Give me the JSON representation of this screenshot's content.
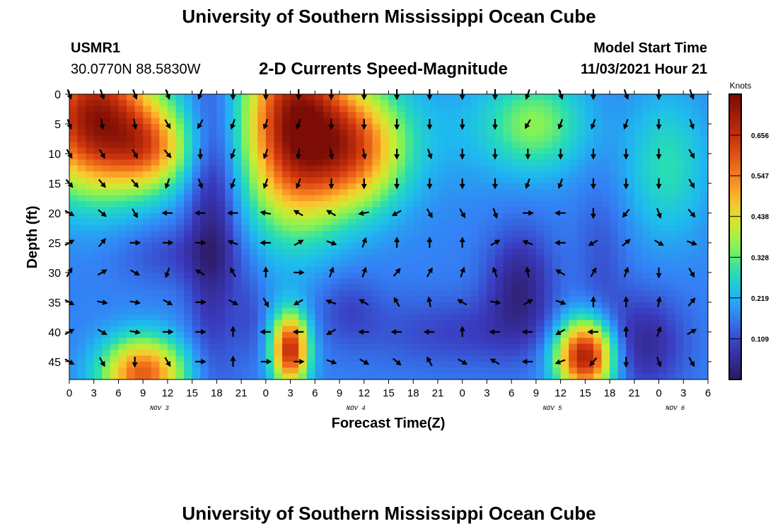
{
  "page": {
    "title": "University of Southern Mississippi Ocean Cube",
    "station_id": "USMR1",
    "coords": "30.0770N  88.5830W",
    "subtitle": "2-D Currents Speed-Magnitude",
    "model_start_label": "Model Start Time",
    "model_start_value": "11/03/2021 Hour 21",
    "footer_title": "University of Southern Mississippi Ocean Cube"
  },
  "chart_data": {
    "type": "heatmap",
    "title": "2-D Currents Speed-Magnitude",
    "xlabel": "Forecast Time(Z)",
    "ylabel": "Depth (ft)",
    "colorbar_label": "Knots",
    "colorbar_ticks": [
      0.109,
      0.219,
      0.328,
      0.438,
      0.547,
      0.656
    ],
    "colorbar_range": [
      0.0,
      0.766
    ],
    "x_hour_range": [
      0,
      78
    ],
    "x_tick_hours": [
      0,
      3,
      6,
      9,
      12,
      15,
      18,
      21,
      24,
      27,
      30,
      33,
      36,
      39,
      42,
      45,
      48,
      51,
      54,
      57,
      60,
      63,
      66,
      69,
      72,
      75,
      78
    ],
    "x_tick_labels": [
      "0",
      "3",
      "6",
      "9",
      "12",
      "15",
      "18",
      "21",
      "0",
      "3",
      "6",
      "9",
      "12",
      "15",
      "18",
      "21",
      "0",
      "3",
      "6",
      "9",
      "12",
      "15",
      "18",
      "21",
      "0",
      "3",
      "6"
    ],
    "date_labels": [
      {
        "hour": 11,
        "text": "NOV 3"
      },
      {
        "hour": 35,
        "text": "NOV 4"
      },
      {
        "hour": 59,
        "text": "NOV 5"
      },
      {
        "hour": 74,
        "text": "NOV 6"
      }
    ],
    "y_range": [
      0,
      48
    ],
    "y_ticks": [
      0,
      5,
      10,
      15,
      20,
      25,
      30,
      35,
      40,
      45
    ],
    "vector_hours": [
      0,
      4,
      8,
      12,
      16,
      20,
      24,
      28,
      32,
      36,
      40,
      44,
      48,
      52,
      56,
      60,
      64,
      68,
      72,
      76
    ],
    "vector_depths": [
      0,
      5,
      10,
      15,
      20,
      25,
      30,
      35,
      40,
      45
    ],
    "vector_dirs_deg": [
      [
        160,
        160,
        160,
        160,
        200,
        180,
        180,
        180,
        180,
        180,
        180,
        180,
        180,
        180,
        200,
        160,
        180,
        160,
        180,
        160
      ],
      [
        160,
        170,
        170,
        150,
        210,
        200,
        200,
        200,
        180,
        180,
        180,
        180,
        180,
        180,
        210,
        200,
        200,
        200,
        180,
        160
      ],
      [
        150,
        150,
        150,
        140,
        180,
        200,
        200,
        190,
        170,
        170,
        180,
        160,
        180,
        180,
        180,
        180,
        180,
        180,
        180,
        150
      ],
      [
        140,
        140,
        140,
        200,
        160,
        200,
        200,
        200,
        180,
        180,
        180,
        180,
        180,
        180,
        200,
        200,
        180,
        180,
        180,
        150
      ],
      [
        120,
        130,
        150,
        270,
        270,
        270,
        280,
        300,
        300,
        260,
        240,
        150,
        150,
        160,
        90,
        270,
        180,
        220,
        160,
        140
      ],
      [
        60,
        40,
        90,
        90,
        90,
        290,
        270,
        60,
        110,
        20,
        0,
        0,
        0,
        60,
        290,
        270,
        240,
        50,
        120,
        110
      ],
      [
        30,
        60,
        120,
        200,
        300,
        330,
        360,
        90,
        20,
        20,
        40,
        30,
        20,
        340,
        350,
        300,
        30,
        20,
        180,
        150
      ],
      [
        120,
        100,
        100,
        120,
        90,
        120,
        150,
        240,
        290,
        300,
        330,
        350,
        300,
        100,
        60,
        110,
        0,
        0,
        10,
        40
      ],
      [
        60,
        120,
        100,
        90,
        90,
        0,
        270,
        270,
        240,
        270,
        270,
        270,
        0,
        270,
        270,
        240,
        270,
        0,
        20,
        60
      ],
      [
        120,
        150,
        180,
        150,
        90,
        0,
        90,
        90,
        110,
        120,
        130,
        330,
        120,
        300,
        270,
        250,
        220,
        180,
        160,
        150
      ]
    ]
  }
}
